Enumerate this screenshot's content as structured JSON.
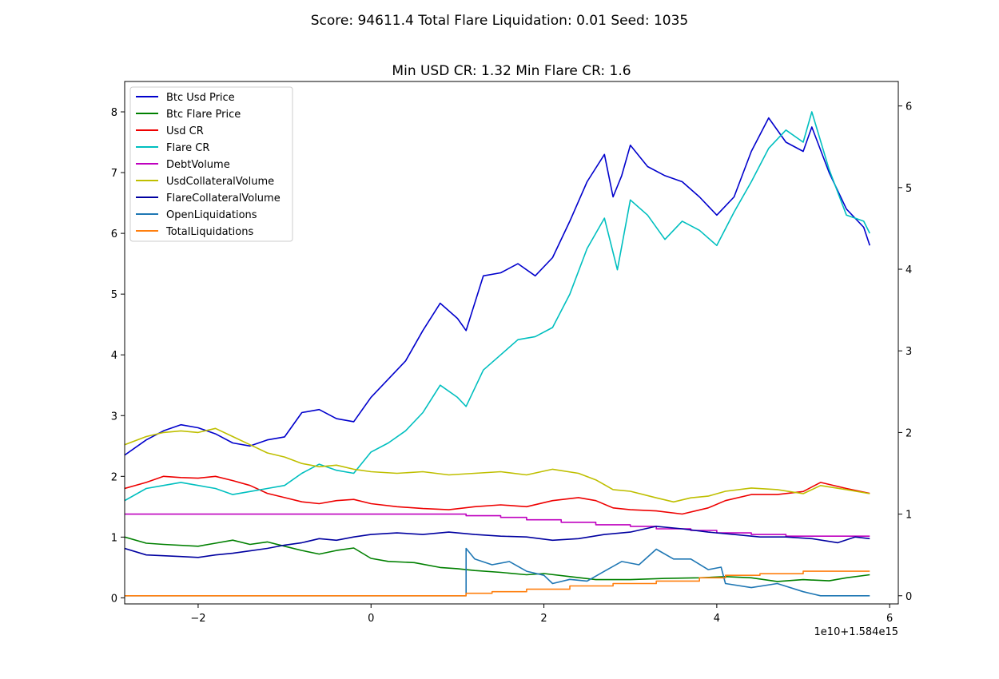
{
  "chart_data": {
    "type": "line",
    "suptitle": "Score: 94611.4 Total Flare Liquidation: 0.01 Seed: 1035",
    "title": "Min USD CR: 1.32 Min Flare CR: 1.6",
    "xlabel": "",
    "ylabel": "",
    "xlim": [
      -2.85,
      6.1
    ],
    "ylim_left": [
      -0.1,
      8.5
    ],
    "ylim_right": [
      -0.1,
      6.3
    ],
    "x_ticks": [
      -2,
      0,
      2,
      4,
      6
    ],
    "y_left_ticks": [
      0,
      1,
      2,
      3,
      4,
      5,
      6,
      7,
      8
    ],
    "y_right_ticks": [
      0,
      1,
      2,
      3,
      4,
      5,
      6
    ],
    "x_offset_label": "1e10+1.584e15",
    "grid": false,
    "legend_position": "upper left",
    "series": [
      {
        "name": "Btc Usd Price",
        "color": "#0000cc",
        "axis": "left",
        "points": [
          [
            -2.85,
            2.35
          ],
          [
            -2.6,
            2.6
          ],
          [
            -2.4,
            2.75
          ],
          [
            -2.2,
            2.85
          ],
          [
            -2.0,
            2.8
          ],
          [
            -1.8,
            2.7
          ],
          [
            -1.6,
            2.55
          ],
          [
            -1.4,
            2.5
          ],
          [
            -1.2,
            2.6
          ],
          [
            -1.0,
            2.65
          ],
          [
            -0.8,
            3.05
          ],
          [
            -0.6,
            3.1
          ],
          [
            -0.4,
            2.95
          ],
          [
            -0.2,
            2.9
          ],
          [
            0.0,
            3.3
          ],
          [
            0.2,
            3.6
          ],
          [
            0.4,
            3.9
          ],
          [
            0.6,
            4.4
          ],
          [
            0.8,
            4.85
          ],
          [
            1.0,
            4.6
          ],
          [
            1.1,
            4.4
          ],
          [
            1.3,
            5.3
          ],
          [
            1.5,
            5.35
          ],
          [
            1.7,
            5.5
          ],
          [
            1.9,
            5.3
          ],
          [
            2.1,
            5.6
          ],
          [
            2.3,
            6.2
          ],
          [
            2.5,
            6.85
          ],
          [
            2.7,
            7.3
          ],
          [
            2.8,
            6.6
          ],
          [
            2.9,
            6.95
          ],
          [
            3.0,
            7.45
          ],
          [
            3.2,
            7.1
          ],
          [
            3.4,
            6.95
          ],
          [
            3.6,
            6.85
          ],
          [
            3.8,
            6.6
          ],
          [
            4.0,
            6.3
          ],
          [
            4.2,
            6.6
          ],
          [
            4.4,
            7.35
          ],
          [
            4.6,
            7.9
          ],
          [
            4.8,
            7.5
          ],
          [
            5.0,
            7.35
          ],
          [
            5.1,
            7.75
          ],
          [
            5.3,
            7.0
          ],
          [
            5.5,
            6.4
          ],
          [
            5.7,
            6.1
          ],
          [
            5.77,
            5.8
          ]
        ]
      },
      {
        "name": "Btc Flare Price",
        "color": "#008000",
        "axis": "left",
        "points": [
          [
            -2.85,
            1.0
          ],
          [
            -2.6,
            0.9
          ],
          [
            -2.4,
            0.88
          ],
          [
            -2.0,
            0.85
          ],
          [
            -1.8,
            0.9
          ],
          [
            -1.6,
            0.95
          ],
          [
            -1.4,
            0.88
          ],
          [
            -1.2,
            0.92
          ],
          [
            -1.0,
            0.85
          ],
          [
            -0.8,
            0.78
          ],
          [
            -0.6,
            0.72
          ],
          [
            -0.4,
            0.78
          ],
          [
            -0.2,
            0.82
          ],
          [
            0.0,
            0.65
          ],
          [
            0.2,
            0.6
          ],
          [
            0.5,
            0.58
          ],
          [
            0.8,
            0.5
          ],
          [
            1.0,
            0.48
          ],
          [
            1.2,
            0.45
          ],
          [
            1.5,
            0.42
          ],
          [
            1.8,
            0.38
          ],
          [
            2.0,
            0.4
          ],
          [
            2.3,
            0.35
          ],
          [
            2.6,
            0.3
          ],
          [
            3.0,
            0.3
          ],
          [
            3.4,
            0.32
          ],
          [
            3.8,
            0.33
          ],
          [
            4.1,
            0.35
          ],
          [
            4.4,
            0.33
          ],
          [
            4.7,
            0.27
          ],
          [
            5.0,
            0.3
          ],
          [
            5.3,
            0.28
          ],
          [
            5.5,
            0.33
          ],
          [
            5.77,
            0.38
          ]
        ]
      },
      {
        "name": "Usd CR",
        "color": "#ee0000",
        "axis": "left",
        "points": [
          [
            -2.85,
            1.8
          ],
          [
            -2.6,
            1.9
          ],
          [
            -2.4,
            2.0
          ],
          [
            -2.2,
            1.98
          ],
          [
            -2.0,
            1.97
          ],
          [
            -1.8,
            2.0
          ],
          [
            -1.6,
            1.93
          ],
          [
            -1.4,
            1.85
          ],
          [
            -1.2,
            1.72
          ],
          [
            -1.0,
            1.65
          ],
          [
            -0.8,
            1.58
          ],
          [
            -0.6,
            1.55
          ],
          [
            -0.4,
            1.6
          ],
          [
            -0.2,
            1.62
          ],
          [
            0.0,
            1.55
          ],
          [
            0.3,
            1.5
          ],
          [
            0.6,
            1.47
          ],
          [
            0.9,
            1.45
          ],
          [
            1.2,
            1.5
          ],
          [
            1.5,
            1.53
          ],
          [
            1.8,
            1.5
          ],
          [
            2.1,
            1.6
          ],
          [
            2.4,
            1.65
          ],
          [
            2.6,
            1.6
          ],
          [
            2.8,
            1.48
          ],
          [
            3.0,
            1.45
          ],
          [
            3.3,
            1.43
          ],
          [
            3.6,
            1.38
          ],
          [
            3.9,
            1.48
          ],
          [
            4.1,
            1.6
          ],
          [
            4.4,
            1.7
          ],
          [
            4.7,
            1.7
          ],
          [
            5.0,
            1.75
          ],
          [
            5.2,
            1.9
          ],
          [
            5.5,
            1.8
          ],
          [
            5.77,
            1.72
          ]
        ]
      },
      {
        "name": "Flare CR",
        "color": "#00bfbf",
        "axis": "left",
        "points": [
          [
            -2.85,
            1.6
          ],
          [
            -2.6,
            1.8
          ],
          [
            -2.4,
            1.85
          ],
          [
            -2.2,
            1.9
          ],
          [
            -2.0,
            1.85
          ],
          [
            -1.8,
            1.8
          ],
          [
            -1.6,
            1.7
          ],
          [
            -1.4,
            1.75
          ],
          [
            -1.2,
            1.8
          ],
          [
            -1.0,
            1.85
          ],
          [
            -0.8,
            2.05
          ],
          [
            -0.6,
            2.2
          ],
          [
            -0.4,
            2.1
          ],
          [
            -0.2,
            2.05
          ],
          [
            0.0,
            2.4
          ],
          [
            0.2,
            2.55
          ],
          [
            0.4,
            2.75
          ],
          [
            0.6,
            3.05
          ],
          [
            0.8,
            3.5
          ],
          [
            1.0,
            3.3
          ],
          [
            1.1,
            3.15
          ],
          [
            1.3,
            3.75
          ],
          [
            1.5,
            4.0
          ],
          [
            1.7,
            4.25
          ],
          [
            1.9,
            4.3
          ],
          [
            2.1,
            4.45
          ],
          [
            2.3,
            5.0
          ],
          [
            2.5,
            5.75
          ],
          [
            2.7,
            6.25
          ],
          [
            2.85,
            5.4
          ],
          [
            3.0,
            6.55
          ],
          [
            3.2,
            6.3
          ],
          [
            3.4,
            5.9
          ],
          [
            3.6,
            6.2
          ],
          [
            3.8,
            6.05
          ],
          [
            4.0,
            5.8
          ],
          [
            4.2,
            6.35
          ],
          [
            4.4,
            6.85
          ],
          [
            4.6,
            7.4
          ],
          [
            4.8,
            7.7
          ],
          [
            5.0,
            7.5
          ],
          [
            5.1,
            8.0
          ],
          [
            5.3,
            7.05
          ],
          [
            5.5,
            6.3
          ],
          [
            5.7,
            6.2
          ],
          [
            5.77,
            6.0
          ]
        ]
      },
      {
        "name": "DebtVolume",
        "color": "#bf00bf",
        "axis": "right",
        "points": [
          [
            -2.85,
            1.0
          ],
          [
            1.1,
            1.0
          ],
          [
            1.1,
            0.98
          ],
          [
            1.5,
            0.98
          ],
          [
            1.5,
            0.96
          ],
          [
            1.8,
            0.96
          ],
          [
            1.8,
            0.93
          ],
          [
            2.2,
            0.93
          ],
          [
            2.2,
            0.9
          ],
          [
            2.6,
            0.9
          ],
          [
            2.6,
            0.87
          ],
          [
            3.0,
            0.87
          ],
          [
            3.0,
            0.85
          ],
          [
            3.3,
            0.85
          ],
          [
            3.3,
            0.82
          ],
          [
            3.7,
            0.82
          ],
          [
            3.7,
            0.8
          ],
          [
            4.0,
            0.8
          ],
          [
            4.0,
            0.77
          ],
          [
            4.4,
            0.77
          ],
          [
            4.4,
            0.75
          ],
          [
            4.8,
            0.75
          ],
          [
            4.8,
            0.73
          ],
          [
            5.77,
            0.73
          ]
        ]
      },
      {
        "name": "UsdCollateralVolume",
        "color": "#bfbf00",
        "axis": "right",
        "points": [
          [
            -2.85,
            1.85
          ],
          [
            -2.6,
            1.95
          ],
          [
            -2.4,
            2.0
          ],
          [
            -2.2,
            2.02
          ],
          [
            -2.0,
            2.0
          ],
          [
            -1.8,
            2.05
          ],
          [
            -1.6,
            1.95
          ],
          [
            -1.4,
            1.85
          ],
          [
            -1.2,
            1.75
          ],
          [
            -1.0,
            1.7
          ],
          [
            -0.8,
            1.62
          ],
          [
            -0.6,
            1.58
          ],
          [
            -0.4,
            1.6
          ],
          [
            -0.2,
            1.55
          ],
          [
            0.0,
            1.52
          ],
          [
            0.3,
            1.5
          ],
          [
            0.6,
            1.52
          ],
          [
            0.9,
            1.48
          ],
          [
            1.2,
            1.5
          ],
          [
            1.5,
            1.52
          ],
          [
            1.8,
            1.48
          ],
          [
            2.1,
            1.55
          ],
          [
            2.4,
            1.5
          ],
          [
            2.6,
            1.42
          ],
          [
            2.8,
            1.3
          ],
          [
            3.0,
            1.28
          ],
          [
            3.3,
            1.2
          ],
          [
            3.5,
            1.15
          ],
          [
            3.7,
            1.2
          ],
          [
            3.9,
            1.22
          ],
          [
            4.1,
            1.28
          ],
          [
            4.4,
            1.32
          ],
          [
            4.7,
            1.3
          ],
          [
            5.0,
            1.25
          ],
          [
            5.2,
            1.35
          ],
          [
            5.5,
            1.3
          ],
          [
            5.77,
            1.25
          ]
        ]
      },
      {
        "name": "FlareCollateralVolume",
        "color": "#0000a0",
        "axis": "right",
        "points": [
          [
            -2.85,
            0.58
          ],
          [
            -2.6,
            0.5
          ],
          [
            -2.4,
            0.49
          ],
          [
            -2.2,
            0.48
          ],
          [
            -2.0,
            0.47
          ],
          [
            -1.8,
            0.5
          ],
          [
            -1.6,
            0.52
          ],
          [
            -1.4,
            0.55
          ],
          [
            -1.2,
            0.58
          ],
          [
            -1.0,
            0.62
          ],
          [
            -0.8,
            0.65
          ],
          [
            -0.6,
            0.7
          ],
          [
            -0.4,
            0.68
          ],
          [
            -0.2,
            0.72
          ],
          [
            0.0,
            0.75
          ],
          [
            0.3,
            0.77
          ],
          [
            0.6,
            0.75
          ],
          [
            0.9,
            0.78
          ],
          [
            1.2,
            0.75
          ],
          [
            1.5,
            0.73
          ],
          [
            1.8,
            0.72
          ],
          [
            2.1,
            0.68
          ],
          [
            2.4,
            0.7
          ],
          [
            2.7,
            0.75
          ],
          [
            3.0,
            0.78
          ],
          [
            3.3,
            0.85
          ],
          [
            3.6,
            0.82
          ],
          [
            3.9,
            0.78
          ],
          [
            4.2,
            0.75
          ],
          [
            4.5,
            0.72
          ],
          [
            4.8,
            0.72
          ],
          [
            5.1,
            0.7
          ],
          [
            5.4,
            0.65
          ],
          [
            5.6,
            0.72
          ],
          [
            5.77,
            0.7
          ]
        ]
      },
      {
        "name": "OpenLiquidations",
        "color": "#1f77b4",
        "axis": "right",
        "points": [
          [
            -2.85,
            0.0
          ],
          [
            1.1,
            0.0
          ],
          [
            1.1,
            0.58
          ],
          [
            1.2,
            0.45
          ],
          [
            1.4,
            0.38
          ],
          [
            1.6,
            0.42
          ],
          [
            1.8,
            0.3
          ],
          [
            2.0,
            0.25
          ],
          [
            2.1,
            0.15
          ],
          [
            2.3,
            0.2
          ],
          [
            2.5,
            0.18
          ],
          [
            2.7,
            0.3
          ],
          [
            2.9,
            0.42
          ],
          [
            3.1,
            0.38
          ],
          [
            3.3,
            0.57
          ],
          [
            3.5,
            0.45
          ],
          [
            3.7,
            0.45
          ],
          [
            3.9,
            0.32
          ],
          [
            4.05,
            0.35
          ],
          [
            4.1,
            0.15
          ],
          [
            4.4,
            0.1
          ],
          [
            4.7,
            0.15
          ],
          [
            5.0,
            0.05
          ],
          [
            5.2,
            0.0
          ],
          [
            5.77,
            0.0
          ]
        ]
      },
      {
        "name": "TotalLiquidations",
        "color": "#ff7f0e",
        "axis": "right",
        "points": [
          [
            -2.85,
            0.0
          ],
          [
            1.1,
            0.0
          ],
          [
            1.1,
            0.03
          ],
          [
            1.4,
            0.03
          ],
          [
            1.4,
            0.05
          ],
          [
            1.8,
            0.05
          ],
          [
            1.8,
            0.08
          ],
          [
            2.3,
            0.08
          ],
          [
            2.3,
            0.12
          ],
          [
            2.8,
            0.12
          ],
          [
            2.8,
            0.15
          ],
          [
            3.3,
            0.15
          ],
          [
            3.3,
            0.18
          ],
          [
            3.8,
            0.18
          ],
          [
            3.8,
            0.22
          ],
          [
            4.1,
            0.22
          ],
          [
            4.1,
            0.25
          ],
          [
            4.5,
            0.25
          ],
          [
            4.5,
            0.27
          ],
          [
            5.0,
            0.27
          ],
          [
            5.0,
            0.3
          ],
          [
            5.77,
            0.3
          ]
        ]
      }
    ]
  }
}
